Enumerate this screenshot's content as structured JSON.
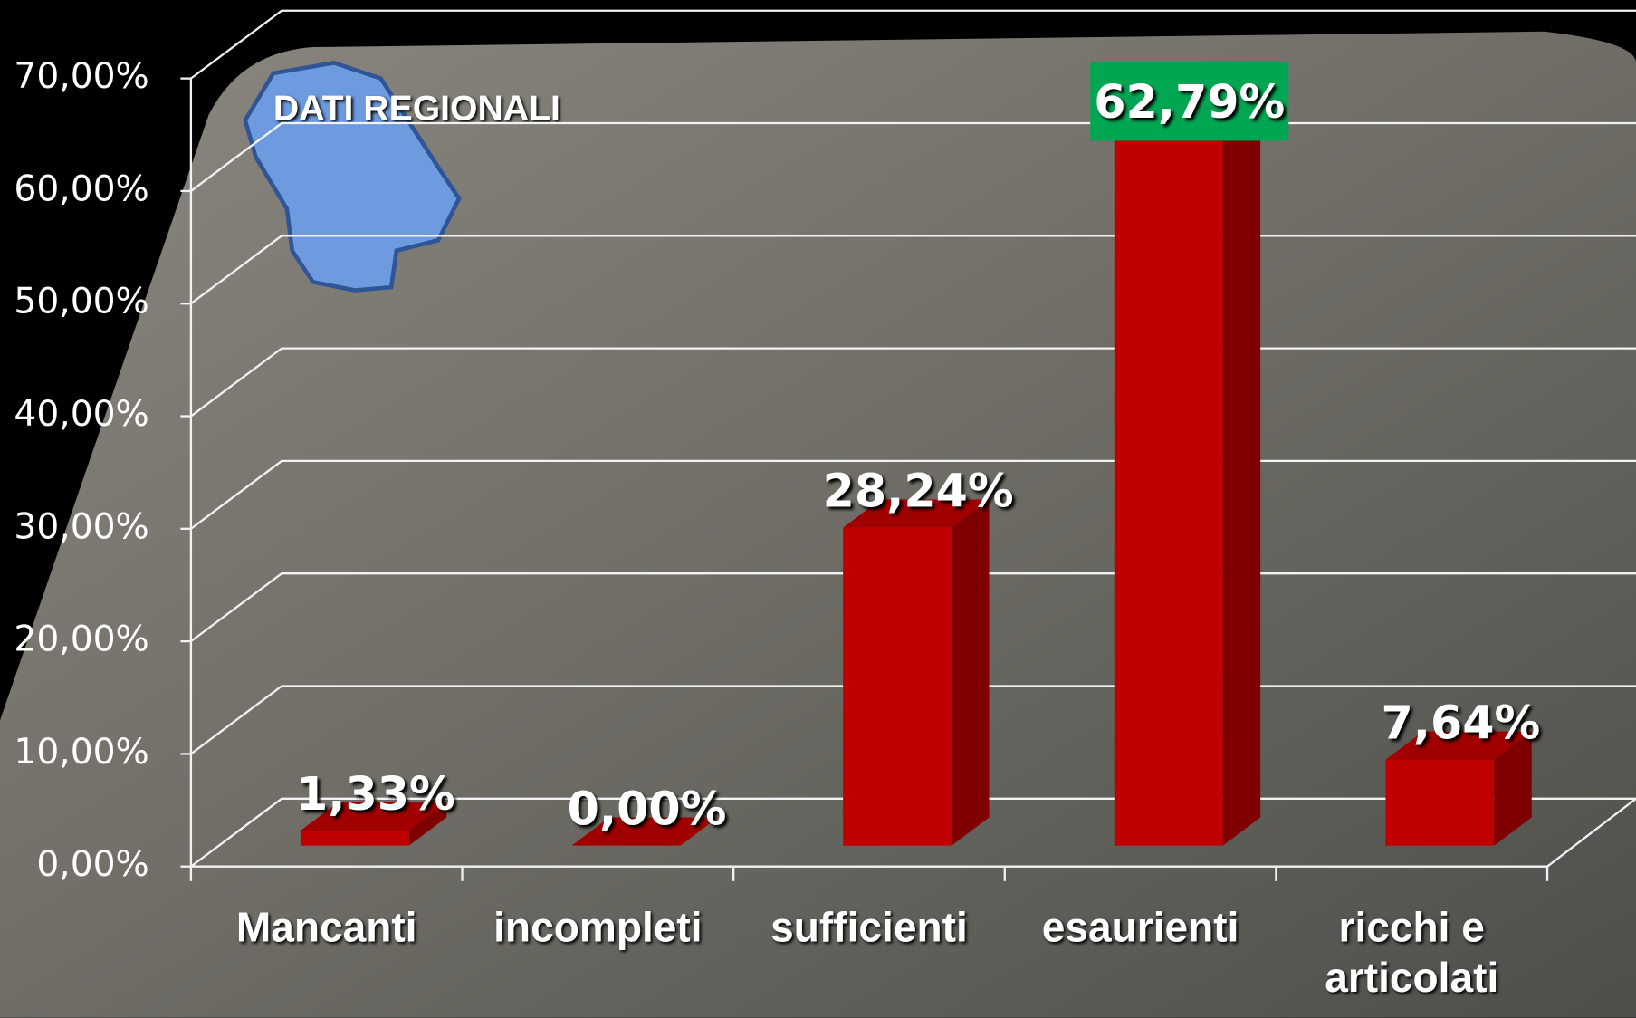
{
  "chart_data": {
    "type": "bar3d",
    "title": "DATI REGIONALI",
    "categories": [
      "Mancanti",
      "incompleti",
      "sufficienti",
      "esaurienti",
      "ricchi e articolati"
    ],
    "values": [
      1.33,
      0,
      28.24,
      62.79,
      7.64
    ],
    "value_labels": [
      "1,33%",
      "0,00%",
      "28,24%",
      "62,79%",
      "7,64%"
    ],
    "color": "#c00000",
    "ylim": [
      0,
      70
    ],
    "yticks": [
      {
        "value": 0,
        "label": "0,00%"
      },
      {
        "value": 10,
        "label": "10,00%"
      },
      {
        "value": 20,
        "label": "20,00%"
      },
      {
        "value": 30,
        "label": "30,00%"
      },
      {
        "value": 40,
        "label": "40,00%"
      },
      {
        "value": 50,
        "label": "50,00%"
      },
      {
        "value": 60,
        "label": "60,00%"
      },
      {
        "value": 70,
        "label": "70,00%"
      }
    ],
    "grid": true
  }
}
